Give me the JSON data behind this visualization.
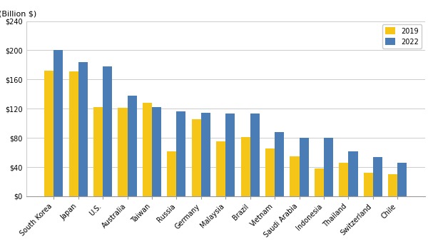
{
  "categories": [
    "South Korea",
    "Japan",
    "U.S.",
    "Australia",
    "Taiwan",
    "Russia",
    "Germany",
    "Malaysia",
    "Brazil",
    "Vietnam",
    "Saudi Arabia",
    "Indonesia",
    "Thailand",
    "Switzerland",
    "Chile"
  ],
  "values_2019": [
    172,
    171,
    122,
    121,
    128,
    62,
    106,
    75,
    81,
    65,
    55,
    38,
    46,
    32,
    30
  ],
  "values_2022": [
    200,
    184,
    178,
    138,
    122,
    116,
    114,
    113,
    113,
    88,
    80,
    80,
    62,
    54,
    46
  ],
  "color_2019": "#F5C518",
  "color_2022": "#4A7DB5",
  "ylabel": "(Billion $)",
  "ylim": [
    0,
    240
  ],
  "yticks": [
    0,
    40,
    80,
    120,
    160,
    200,
    240
  ],
  "ytick_labels": [
    "$0",
    "$40",
    "$80",
    "$120",
    "$160",
    "$200",
    "$240"
  ],
  "legend_labels": [
    "2019",
    "2022"
  ],
  "bar_width": 0.38,
  "background_color": "#ffffff",
  "grid_color": "#cccccc",
  "axis_fontsize": 8,
  "tick_fontsize": 7
}
